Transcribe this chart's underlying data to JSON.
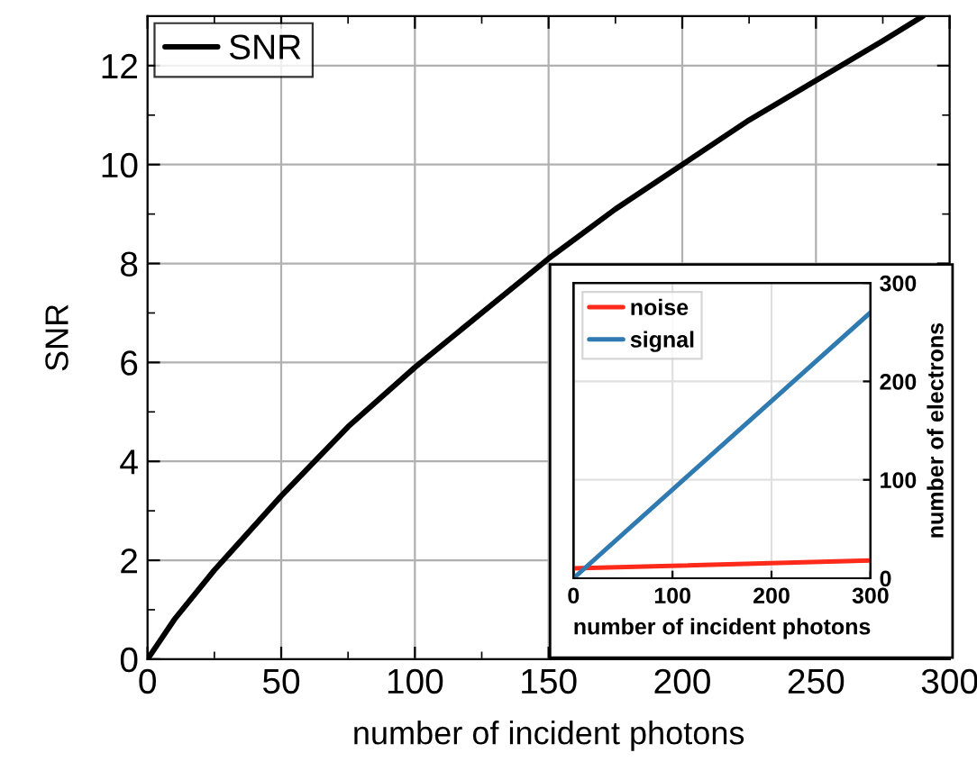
{
  "chart_data": [
    {
      "type": "line",
      "xlabel": "number of incident photons",
      "ylabel": "SNR",
      "x": [
        0,
        10,
        25,
        50,
        75,
        100,
        125,
        150,
        175,
        200,
        225,
        250,
        275,
        290
      ],
      "series": [
        {
          "name": "SNR",
          "color": "#000000",
          "values": [
            0,
            0.8,
            1.8,
            3.3,
            4.7,
            5.9,
            7.0,
            8.1,
            9.1,
            10.0,
            10.9,
            11.7,
            12.5,
            13.0
          ]
        }
      ],
      "xlim": [
        0,
        300
      ],
      "xticks": [
        0,
        50,
        100,
        150,
        200,
        250,
        300
      ],
      "ylim": [
        0,
        13
      ],
      "yticks": [
        0,
        2,
        4,
        6,
        8,
        10,
        12
      ],
      "grid": true,
      "legend": "top left"
    },
    {
      "type": "line",
      "xlabel": "number of incident photons",
      "y2label": "number of electrons",
      "x": [
        0,
        300
      ],
      "series": [
        {
          "name": "noise",
          "color": "#ff2a1a",
          "values": [
            10,
            18
          ],
          "axis": "y2"
        },
        {
          "name": "signal",
          "color": "#2f7ab0",
          "values": [
            0,
            270
          ],
          "axis": "y2"
        }
      ],
      "xlim": [
        0,
        300
      ],
      "xticks": [
        0,
        100,
        200,
        300
      ],
      "y2lim": [
        0,
        300
      ],
      "y2ticks": [
        0,
        100,
        200,
        300
      ],
      "grid": true,
      "legend": "top left"
    }
  ]
}
